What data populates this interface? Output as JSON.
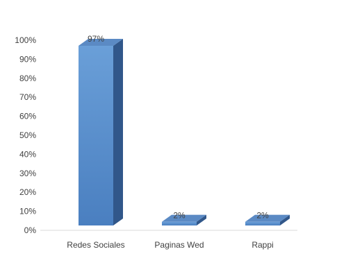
{
  "chart_data": {
    "type": "bar",
    "style": "3d-column",
    "categories": [
      "Redes Sociales",
      "Paginas Wed",
      "Rappi"
    ],
    "values": [
      97,
      2,
      2
    ],
    "data_labels": [
      "97%",
      "2%",
      "2%"
    ],
    "ylim": [
      0,
      100
    ],
    "yticks": [
      "0%",
      "10%",
      "20%",
      "30%",
      "40%",
      "50%",
      "60%",
      "70%",
      "80%",
      "90%",
      "100%"
    ],
    "grid": false,
    "legend": "none",
    "colors": {
      "bar_front_top": "#6a9fd8",
      "bar_front_bottom": "#4a7fc0",
      "bar_side": "#31578a",
      "bar_top": "#5b8ac4",
      "floor": "#d9d9d9",
      "text": "#404040"
    }
  }
}
